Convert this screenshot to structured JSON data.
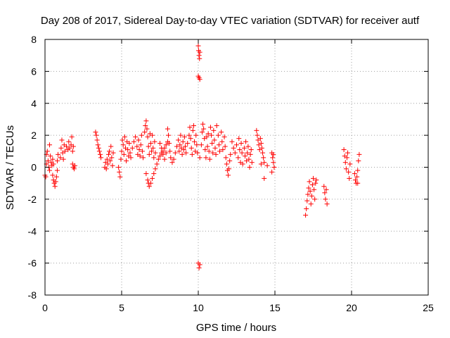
{
  "chart_data": {
    "type": "scatter",
    "title": "Day 208 of 2017, Sidereal Day-to-day VTEC variation (SDTVAR) for receiver autf",
    "xlabel": "GPS time / hours",
    "ylabel": "SDTVAR / TECUs",
    "xlim": [
      0,
      25
    ],
    "ylim": [
      -8,
      8
    ],
    "x_ticks": [
      "0",
      "5",
      "10",
      "15",
      "20",
      "25"
    ],
    "y_ticks": [
      "8",
      "6",
      "4",
      "2",
      "0",
      "-2",
      "-4",
      "-6",
      "-8"
    ],
    "x_tick_values": [
      0,
      5,
      10,
      15,
      20,
      25
    ],
    "y_tick_values": [
      8,
      6,
      4,
      2,
      0,
      -2,
      -4,
      -6,
      -8
    ],
    "grid": true,
    "marker": "+",
    "color": "#ff0000",
    "series": [
      {
        "points": [
          [
            0.0,
            -0.5
          ],
          [
            0.05,
            -0.6
          ],
          [
            0.1,
            0.2
          ],
          [
            0.1,
            0.8
          ],
          [
            0.15,
            1.0
          ],
          [
            0.2,
            0.4
          ],
          [
            0.25,
            0.0
          ],
          [
            0.3,
            1.4
          ],
          [
            0.3,
            -0.2
          ],
          [
            0.35,
            0.7
          ],
          [
            0.4,
            0.3
          ],
          [
            0.45,
            0.1
          ],
          [
            0.5,
            0.5
          ],
          [
            0.55,
            0.2
          ],
          [
            0.5,
            -0.5
          ],
          [
            0.55,
            -0.8
          ],
          [
            0.6,
            -1.0
          ],
          [
            0.65,
            -1.2
          ],
          [
            0.7,
            -0.9
          ],
          [
            0.75,
            -0.6
          ],
          [
            0.8,
            -0.2
          ],
          [
            0.8,
            0.4
          ],
          [
            0.85,
            0.8
          ],
          [
            1.0,
            0.6
          ],
          [
            1.05,
            1.2
          ],
          [
            1.1,
            1.7
          ],
          [
            1.15,
            0.9
          ],
          [
            1.2,
            0.5
          ],
          [
            1.25,
            1.4
          ],
          [
            1.3,
            1.0
          ],
          [
            1.4,
            1.3
          ],
          [
            1.5,
            1.1
          ],
          [
            1.55,
            1.6
          ],
          [
            1.6,
            1.2
          ],
          [
            1.7,
            1.4
          ],
          [
            1.75,
            1.9
          ],
          [
            1.8,
            1.0
          ],
          [
            1.85,
            1.3
          ],
          [
            1.8,
            0.2
          ],
          [
            1.85,
            0.0
          ],
          [
            1.9,
            -0.1
          ],
          [
            1.95,
            0.1
          ],
          [
            3.3,
            2.2
          ],
          [
            3.35,
            2.0
          ],
          [
            3.4,
            1.7
          ],
          [
            3.45,
            1.4
          ],
          [
            3.5,
            1.2
          ],
          [
            3.55,
            1.0
          ],
          [
            3.6,
            0.8
          ],
          [
            3.65,
            0.6
          ],
          [
            3.9,
            0.0
          ],
          [
            3.95,
            0.3
          ],
          [
            4.0,
            -0.1
          ],
          [
            4.05,
            0.5
          ],
          [
            4.1,
            0.2
          ],
          [
            4.15,
            0.8
          ],
          [
            4.2,
            1.0
          ],
          [
            4.25,
            0.4
          ],
          [
            4.3,
            1.3
          ],
          [
            4.35,
            0.6
          ],
          [
            4.4,
            0.1
          ],
          [
            4.45,
            0.9
          ],
          [
            4.8,
            0.0
          ],
          [
            4.85,
            -0.3
          ],
          [
            4.9,
            -0.6
          ],
          [
            4.95,
            0.5
          ],
          [
            5.0,
            1.0
          ],
          [
            5.05,
            1.7
          ],
          [
            5.1,
            1.4
          ],
          [
            5.15,
            0.8
          ],
          [
            5.2,
            1.9
          ],
          [
            5.25,
            1.2
          ],
          [
            5.3,
            0.4
          ],
          [
            5.35,
            1.6
          ],
          [
            5.4,
            1.1
          ],
          [
            5.45,
            0.7
          ],
          [
            5.5,
            1.5
          ],
          [
            5.55,
            0.9
          ],
          [
            5.6,
            0.6
          ],
          [
            5.7,
            1.2
          ],
          [
            5.8,
            1.6
          ],
          [
            5.9,
            1.9
          ],
          [
            6.0,
            1.3
          ],
          [
            6.05,
            0.8
          ],
          [
            6.1,
            1.7
          ],
          [
            6.15,
            1.1
          ],
          [
            6.2,
            0.7
          ],
          [
            6.25,
            1.4
          ],
          [
            6.3,
            2.0
          ],
          [
            6.35,
            1.0
          ],
          [
            6.4,
            0.6
          ],
          [
            6.5,
            2.2
          ],
          [
            6.55,
            2.6
          ],
          [
            6.6,
            2.9
          ],
          [
            6.65,
            2.4
          ],
          [
            6.7,
            1.9
          ],
          [
            6.75,
            1.3
          ],
          [
            6.8,
            0.8
          ],
          [
            6.85,
            2.1
          ],
          [
            6.9,
            1.5
          ],
          [
            6.95,
            1.0
          ],
          [
            7.0,
            2.0
          ],
          [
            7.05,
            1.2
          ],
          [
            7.1,
            0.6
          ],
          [
            7.15,
            1.6
          ],
          [
            7.2,
            0.9
          ],
          [
            6.6,
            -0.4
          ],
          [
            6.7,
            -0.8
          ],
          [
            6.75,
            -1.0
          ],
          [
            6.8,
            -1.2
          ],
          [
            6.9,
            -1.0
          ],
          [
            7.0,
            -0.7
          ],
          [
            7.1,
            -0.4
          ],
          [
            7.2,
            -0.1
          ],
          [
            7.3,
            0.2
          ],
          [
            7.4,
            0.5
          ],
          [
            7.5,
            0.7
          ],
          [
            7.6,
            0.9
          ],
          [
            7.7,
            1.0
          ],
          [
            7.8,
            1.2
          ],
          [
            7.9,
            1.4
          ],
          [
            8.0,
            1.6
          ],
          [
            7.5,
            1.5
          ],
          [
            7.6,
            1.2
          ],
          [
            7.7,
            0.8
          ],
          [
            7.8,
            0.5
          ],
          [
            7.9,
            0.9
          ],
          [
            8.0,
            2.4
          ],
          [
            8.05,
            2.0
          ],
          [
            8.1,
            1.5
          ],
          [
            8.15,
            1.0
          ],
          [
            8.2,
            0.6
          ],
          [
            8.3,
            0.3
          ],
          [
            8.4,
            0.5
          ],
          [
            8.5,
            0.9
          ],
          [
            8.6,
            1.3
          ],
          [
            8.7,
            1.7
          ],
          [
            8.75,
            1.0
          ],
          [
            8.8,
            1.4
          ],
          [
            8.85,
            2.0
          ],
          [
            8.9,
            1.2
          ],
          [
            8.95,
            0.8
          ],
          [
            9.0,
            1.6
          ],
          [
            9.05,
            1.1
          ],
          [
            9.1,
            1.9
          ],
          [
            9.15,
            1.3
          ],
          [
            9.2,
            0.9
          ],
          [
            9.3,
            1.5
          ],
          [
            9.4,
            2.0
          ],
          [
            9.45,
            2.5
          ],
          [
            9.5,
            1.8
          ],
          [
            9.55,
            1.2
          ],
          [
            9.6,
            0.8
          ],
          [
            9.65,
            2.3
          ],
          [
            9.7,
            2.6
          ],
          [
            9.75,
            1.6
          ],
          [
            9.8,
            1.0
          ],
          [
            9.85,
            2.0
          ],
          [
            9.9,
            1.4
          ],
          [
            9.95,
            0.9
          ],
          [
            10.0,
            7.6
          ],
          [
            10.02,
            7.3
          ],
          [
            10.05,
            7.0
          ],
          [
            10.08,
            6.8
          ],
          [
            10.1,
            7.2
          ],
          [
            10.0,
            5.7
          ],
          [
            10.05,
            5.6
          ],
          [
            10.1,
            5.5
          ],
          [
            10.0,
            -6.0
          ],
          [
            10.05,
            -6.3
          ],
          [
            10.1,
            -6.1
          ],
          [
            10.1,
            0.6
          ],
          [
            10.2,
            1.4
          ],
          [
            10.25,
            2.2
          ],
          [
            10.3,
            2.7
          ],
          [
            10.35,
            2.4
          ],
          [
            10.4,
            1.8
          ],
          [
            10.45,
            1.1
          ],
          [
            10.5,
            0.6
          ],
          [
            10.55,
            1.9
          ],
          [
            10.6,
            1.3
          ],
          [
            10.65,
            2.1
          ],
          [
            10.7,
            1.0
          ],
          [
            10.75,
            0.5
          ],
          [
            10.8,
            2.5
          ],
          [
            10.85,
            2.0
          ],
          [
            10.9,
            1.5
          ],
          [
            10.95,
            0.9
          ],
          [
            11.0,
            2.3
          ],
          [
            11.05,
            1.7
          ],
          [
            11.1,
            1.2
          ],
          [
            11.15,
            0.8
          ],
          [
            11.2,
            2.6
          ],
          [
            11.3,
            2.0
          ],
          [
            11.35,
            1.4
          ],
          [
            11.4,
            1.0
          ],
          [
            11.5,
            2.2
          ],
          [
            11.55,
            1.6
          ],
          [
            11.6,
            1.1
          ],
          [
            11.7,
            1.9
          ],
          [
            11.75,
            1.3
          ],
          [
            11.8,
            0.6
          ],
          [
            11.85,
            0.2
          ],
          [
            11.9,
            -0.2
          ],
          [
            11.95,
            -0.5
          ],
          [
            12.0,
            -0.1
          ],
          [
            12.05,
            0.4
          ],
          [
            12.1,
            0.8
          ],
          [
            12.2,
            1.6
          ],
          [
            12.3,
            1.2
          ],
          [
            12.4,
            0.9
          ],
          [
            12.5,
            1.4
          ],
          [
            12.6,
            0.6
          ],
          [
            12.65,
            1.8
          ],
          [
            12.7,
            1.1
          ],
          [
            12.75,
            0.3
          ],
          [
            12.8,
            1.5
          ],
          [
            12.85,
            0.9
          ],
          [
            12.9,
            0.2
          ],
          [
            13.0,
            1.2
          ],
          [
            13.05,
            0.7
          ],
          [
            13.1,
            1.6
          ],
          [
            13.15,
            0.4
          ],
          [
            13.2,
            0.9
          ],
          [
            13.25,
            1.3
          ],
          [
            13.3,
            0.5
          ],
          [
            13.35,
            0.0
          ],
          [
            13.4,
            0.8
          ],
          [
            13.45,
            1.1
          ],
          [
            13.5,
            0.3
          ],
          [
            13.8,
            2.3
          ],
          [
            13.85,
            2.0
          ],
          [
            13.9,
            1.7
          ],
          [
            13.95,
            1.4
          ],
          [
            14.0,
            1.1
          ],
          [
            14.05,
            1.8
          ],
          [
            14.1,
            1.5
          ],
          [
            14.15,
            1.2
          ],
          [
            14.2,
            0.9
          ],
          [
            14.25,
            0.6
          ],
          [
            14.3,
            0.3
          ],
          [
            14.1,
            0.2
          ],
          [
            14.3,
            -0.7
          ],
          [
            14.5,
            0.1
          ],
          [
            14.8,
            0.9
          ],
          [
            14.85,
            0.6
          ],
          [
            14.9,
            0.3
          ],
          [
            14.95,
            0.0
          ],
          [
            14.8,
            -0.3
          ],
          [
            14.9,
            0.8
          ],
          [
            17.0,
            -3.0
          ],
          [
            17.05,
            -2.6
          ],
          [
            17.1,
            -2.1
          ],
          [
            17.15,
            -1.7
          ],
          [
            17.2,
            -1.3
          ],
          [
            17.25,
            -0.9
          ],
          [
            17.3,
            -1.5
          ],
          [
            17.35,
            -2.3
          ],
          [
            17.4,
            -1.8
          ],
          [
            17.45,
            -1.1
          ],
          [
            17.5,
            -0.7
          ],
          [
            17.55,
            -1.4
          ],
          [
            17.6,
            -2.0
          ],
          [
            17.65,
            -1.0
          ],
          [
            17.7,
            -0.8
          ],
          [
            18.2,
            -1.2
          ],
          [
            18.25,
            -1.6
          ],
          [
            18.3,
            -2.0
          ],
          [
            18.35,
            -1.4
          ],
          [
            18.4,
            -2.3
          ],
          [
            19.5,
            1.1
          ],
          [
            19.55,
            0.7
          ],
          [
            19.6,
            0.3
          ],
          [
            19.65,
            -0.1
          ],
          [
            19.7,
            0.6
          ],
          [
            19.75,
            0.9
          ],
          [
            19.8,
            -0.3
          ],
          [
            19.85,
            -0.7
          ],
          [
            19.9,
            0.2
          ],
          [
            20.2,
            -0.4
          ],
          [
            20.25,
            -0.8
          ],
          [
            20.3,
            -1.0
          ],
          [
            20.35,
            -0.6
          ],
          [
            20.4,
            -0.2
          ],
          [
            20.45,
            0.4
          ],
          [
            20.5,
            0.8
          ],
          [
            20.4,
            -1.0
          ]
        ]
      }
    ]
  }
}
